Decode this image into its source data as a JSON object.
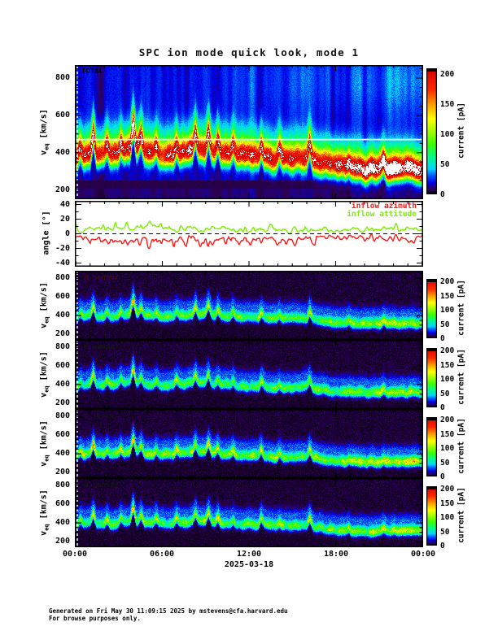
{
  "title": "SPC ion mode quick look, mode 1",
  "footer": {
    "line1": "Generated on Fri May 30 11:09:15 2025 by mstevens@cfa.harvard.edu",
    "line2": "For browse purposes only."
  },
  "chart_data": {
    "type": "spectrogram",
    "x_axis": {
      "tick_labels": [
        "00:00",
        "06:00",
        "12:00",
        "18:00",
        "00:00"
      ],
      "date_label": "2025-03-18",
      "span_hours": 24
    },
    "colormap_stops": [
      [
        0,
        5,
        0,
        10
      ],
      [
        0.04,
        45,
        0,
        85
      ],
      [
        0.09,
        0,
        0,
        230
      ],
      [
        0.15,
        0,
        90,
        255
      ],
      [
        0.2,
        0,
        210,
        255
      ],
      [
        0.3,
        0,
        255,
        130
      ],
      [
        0.4,
        60,
        255,
        0
      ],
      [
        0.52,
        180,
        255,
        0
      ],
      [
        0.6,
        255,
        255,
        0
      ],
      [
        0.72,
        255,
        150,
        0
      ],
      [
        0.83,
        255,
        40,
        0
      ],
      [
        1,
        215,
        0,
        0
      ]
    ],
    "colors": {
      "saturated": "#ffffff",
      "frame": "#000000",
      "background": "#ffffff"
    },
    "shared": {
      "bulk_speed_hourly_kms": [
        370,
        400,
        385,
        395,
        430,
        400,
        385,
        395,
        410,
        420,
        395,
        385,
        380,
        375,
        362,
        366,
        372,
        345,
        322,
        315,
        310,
        314,
        310,
        314,
        310
      ],
      "spikes": [
        {
          "t": 0.35,
          "dv": 55
        },
        {
          "t": 1.25,
          "dv": 125
        },
        {
          "t": 2.2,
          "dv": 70
        },
        {
          "t": 3.15,
          "dv": 60
        },
        {
          "t": 4.0,
          "dv": 165
        },
        {
          "t": 4.55,
          "dv": 85
        },
        {
          "t": 5.6,
          "dv": 55
        },
        {
          "t": 7.0,
          "dv": 65
        },
        {
          "t": 8.3,
          "dv": 105
        },
        {
          "t": 9.2,
          "dv": 115
        },
        {
          "t": 9.85,
          "dv": 75
        },
        {
          "t": 10.9,
          "dv": 55
        },
        {
          "t": 12.85,
          "dv": 85
        },
        {
          "t": 14.1,
          "dv": 55
        },
        {
          "t": 16.2,
          "dv": 95
        },
        {
          "t": 18.9,
          "dv": 35
        },
        {
          "t": 21.3,
          "dv": 45
        }
      ]
    },
    "panels": [
      {
        "id": "total",
        "type": "spectrogram",
        "panel_label": "TOTAL",
        "label_color": "#000000",
        "ylabel": {
          "base": "v",
          "sub": "eq",
          "unit": " [km/s]"
        },
        "y_ticks": [
          200,
          400,
          600,
          800
        ],
        "y_minor_step": 50,
        "y_range_kms": [
          150,
          870
        ],
        "white_line_kms": 470,
        "peak_current_pa": 195,
        "background_current_pa": 20,
        "seed": 7,
        "colorbar": {
          "label": "current [pA]",
          "ticks": [
            0,
            50,
            100,
            150,
            200
          ],
          "max_pa": 210
        }
      },
      {
        "id": "angles",
        "type": "line",
        "ylabel": "angle [°]",
        "y_ticks": [
          -40,
          -20,
          0,
          20,
          40
        ],
        "y_minor_step": 10,
        "y_range_deg": [
          -45,
          45
        ],
        "zero_line": true,
        "series": [
          {
            "name": "inflow azimuth",
            "color": "#ff1a1a",
            "hourly_deg": [
              -4,
              -6,
              -5,
              -11,
              -8,
              -7,
              -9,
              -8,
              -6,
              -7,
              -8,
              -6,
              -5,
              -6,
              -7,
              -8,
              -6,
              -4,
              -3,
              -3,
              -4,
              -3,
              -4,
              -5,
              -4
            ]
          },
          {
            "name": "inflow attitude",
            "color": "#7cf000",
            "hourly_deg": [
              3,
              5,
              6,
              9,
              6,
              10,
              8,
              5,
              4,
              6,
              8,
              5,
              3,
              5,
              4,
              3,
              5,
              6,
              4,
              4,
              5,
              6,
              6,
              5,
              4
            ]
          }
        ]
      },
      {
        "id": "sensor-a",
        "type": "spectrogram",
        "panel_label": "A sensor",
        "label_color": "#3d0d0d",
        "ylabel": {
          "base": "v",
          "sub": "eq",
          "unit": " [km/s]"
        },
        "y_ticks": [
          200,
          400,
          600,
          800
        ],
        "y_minor_step": 50,
        "y_range_kms": [
          140,
          880
        ],
        "gain": 1.0,
        "seed": 11,
        "colorbar": {
          "label": "current [pA]",
          "ticks": [
            0,
            50,
            100,
            150,
            200
          ],
          "max_pa": 210
        }
      },
      {
        "id": "sensor-b",
        "type": "spectrogram",
        "panel_label": "B sensor",
        "label_color": "#141414",
        "ylabel": {
          "base": "v",
          "sub": "eq",
          "unit": " [km/s]"
        },
        "y_ticks": [
          200,
          400,
          600,
          800
        ],
        "y_minor_step": 50,
        "y_range_kms": [
          140,
          880
        ],
        "gain": 0.92,
        "seed": 23,
        "colorbar": {
          "label": "current [pA]",
          "ticks": [
            0,
            50,
            100,
            150,
            200
          ],
          "max_pa": 210
        }
      },
      {
        "id": "sensor-c",
        "type": "spectrogram",
        "panel_label": "C sensor",
        "label_color": "#141414",
        "ylabel": {
          "base": "v",
          "sub": "eq",
          "unit": " [km/s]"
        },
        "y_ticks": [
          200,
          400,
          600,
          800
        ],
        "y_minor_step": 50,
        "y_range_kms": [
          140,
          880
        ],
        "gain": 1.12,
        "seed": 37,
        "colorbar": {
          "label": "current [pA]",
          "ticks": [
            0,
            50,
            100,
            150,
            200
          ],
          "max_pa": 210
        }
      },
      {
        "id": "sensor-d",
        "type": "spectrogram",
        "panel_label": "D sensor",
        "label_color": "#141414",
        "ylabel": {
          "base": "v",
          "sub": "eq",
          "unit": " [km/s]"
        },
        "y_ticks": [
          200,
          400,
          600,
          800
        ],
        "y_minor_step": 50,
        "y_range_kms": [
          140,
          880
        ],
        "gain": 1.02,
        "seed": 53,
        "colorbar": {
          "label": "current [pA]",
          "ticks": [
            0,
            50,
            100,
            150,
            200
          ],
          "max_pa": 210
        }
      }
    ]
  }
}
